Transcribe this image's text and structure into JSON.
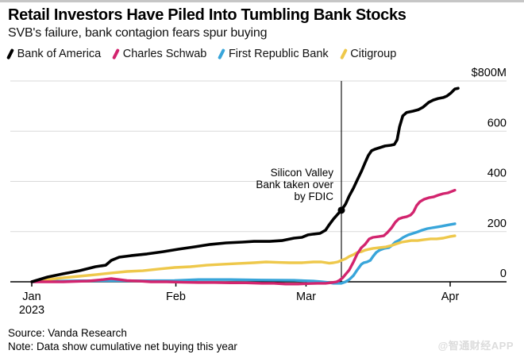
{
  "header": {
    "title": "Retail Investors Have Piled Into Tumbling Bank Stocks",
    "subtitle": "SVB's failure, bank contagion fears spur buying"
  },
  "legend": {
    "items": [
      {
        "label": "Bank of America",
        "color": "#000000"
      },
      {
        "label": "Charles Schwab",
        "color": "#d2246e"
      },
      {
        "label": "First Republic Bank",
        "color": "#38a5da"
      },
      {
        "label": "Citigroup",
        "color": "#eec84b"
      }
    ]
  },
  "chart_data": {
    "type": "line",
    "title": "Retail Investors Have Piled Into Tumbling Bank Stocks",
    "subtitle": "SVB's failure, bank contagion fears spur buying",
    "unit": "$M cumulative net buying",
    "x_axis": {
      "tick_labels": [
        "Jan",
        "Feb",
        "Mar",
        "Apr"
      ],
      "tick_days": [
        0,
        31,
        59,
        90
      ],
      "year_label": "2023",
      "domain_days": [
        0,
        91.7
      ]
    },
    "y_axis": {
      "ticks": [
        0,
        200,
        400,
        600,
        800
      ],
      "top_tick_label": "$800M",
      "ylim": [
        -15,
        800
      ],
      "grid": true,
      "label_side": "right"
    },
    "event_line": {
      "day": 66.6,
      "label_lines": [
        "Silicon Valley",
        "Bank taken over",
        "by FDIC"
      ],
      "marker": {
        "day": 66.6,
        "value": 285,
        "series": "Bank of America"
      }
    },
    "grid_color": "#d9d9d9",
    "series": [
      {
        "name": "Bank of America",
        "color": "#000000",
        "width": 3.6,
        "points": [
          [
            0,
            0
          ],
          [
            3.4,
            19
          ],
          [
            6.8,
            32
          ],
          [
            10.2,
            44
          ],
          [
            13.7,
            60
          ],
          [
            15.9,
            66
          ],
          [
            17.1,
            85
          ],
          [
            18.8,
            98
          ],
          [
            21.3,
            104
          ],
          [
            24.8,
            111
          ],
          [
            28.2,
            120
          ],
          [
            31.6,
            130
          ],
          [
            35,
            139
          ],
          [
            38.4,
            149
          ],
          [
            41.8,
            155
          ],
          [
            45.3,
            158
          ],
          [
            47.8,
            161
          ],
          [
            51.2,
            161
          ],
          [
            53.8,
            164
          ],
          [
            56.4,
            174
          ],
          [
            58.1,
            177
          ],
          [
            59.4,
            187
          ],
          [
            60.6,
            190
          ],
          [
            62,
            193
          ],
          [
            63.2,
            206
          ],
          [
            64,
            228
          ],
          [
            64.9,
            250
          ],
          [
            65.8,
            269
          ],
          [
            66.6,
            285
          ],
          [
            67.5,
            310
          ],
          [
            68.3,
            342
          ],
          [
            69.2,
            373
          ],
          [
            70,
            405
          ],
          [
            70.9,
            440
          ],
          [
            71.7,
            474
          ],
          [
            72.4,
            503
          ],
          [
            73.1,
            522
          ],
          [
            73.8,
            528
          ],
          [
            74.8,
            534
          ],
          [
            76,
            541
          ],
          [
            77.2,
            544
          ],
          [
            78,
            547
          ],
          [
            78.6,
            566
          ],
          [
            79.1,
            617
          ],
          [
            79.8,
            661
          ],
          [
            80.6,
            674
          ],
          [
            82,
            680
          ],
          [
            83.2,
            686
          ],
          [
            84.2,
            696
          ],
          [
            85.4,
            715
          ],
          [
            86.4,
            724
          ],
          [
            87.4,
            730
          ],
          [
            88.5,
            734
          ],
          [
            89.3,
            740
          ],
          [
            90.2,
            753
          ],
          [
            91,
            768
          ],
          [
            91.7,
            771
          ]
        ]
      },
      {
        "name": "Charles Schwab",
        "color": "#d2246e",
        "width": 3.4,
        "points": [
          [
            0,
            0
          ],
          [
            6.8,
            0
          ],
          [
            12,
            3
          ],
          [
            15.4,
            9
          ],
          [
            17.1,
            13
          ],
          [
            18.8,
            9
          ],
          [
            20.5,
            5
          ],
          [
            23.1,
            3
          ],
          [
            25.6,
            0
          ],
          [
            29,
            0
          ],
          [
            32.4,
            -2
          ],
          [
            35.9,
            -3
          ],
          [
            39.3,
            -3
          ],
          [
            42.7,
            -4
          ],
          [
            46.1,
            -4
          ],
          [
            49.5,
            -6
          ],
          [
            52.1,
            -6
          ],
          [
            54.6,
            -9
          ],
          [
            57.2,
            -9
          ],
          [
            59.8,
            -7
          ],
          [
            61.5,
            -6
          ],
          [
            63.2,
            -6
          ],
          [
            64.6,
            -3
          ],
          [
            65.6,
            0
          ],
          [
            66.2,
            6
          ],
          [
            66.9,
            16
          ],
          [
            67.6,
            32
          ],
          [
            68.3,
            47
          ],
          [
            69.2,
            79
          ],
          [
            70,
            111
          ],
          [
            70.9,
            136
          ],
          [
            71.7,
            149
          ],
          [
            72.6,
            171
          ],
          [
            73.4,
            177
          ],
          [
            74.6,
            180
          ],
          [
            75.7,
            183
          ],
          [
            76.5,
            196
          ],
          [
            77.4,
            215
          ],
          [
            78.2,
            237
          ],
          [
            78.9,
            250
          ],
          [
            79.8,
            256
          ],
          [
            80.6,
            259
          ],
          [
            81.5,
            266
          ],
          [
            82.1,
            278
          ],
          [
            82.8,
            304
          ],
          [
            83.5,
            319
          ],
          [
            84.4,
            329
          ],
          [
            85.4,
            335
          ],
          [
            86.4,
            338
          ],
          [
            87.4,
            345
          ],
          [
            88.5,
            351
          ],
          [
            89.5,
            354
          ],
          [
            90.3,
            360
          ],
          [
            91,
            365
          ]
        ]
      },
      {
        "name": "First Republic Bank",
        "color": "#38a5da",
        "width": 3.4,
        "points": [
          [
            0,
            0
          ],
          [
            3.4,
            2
          ],
          [
            10.2,
            4
          ],
          [
            17.1,
            4
          ],
          [
            23.9,
            4
          ],
          [
            30.7,
            5
          ],
          [
            35.9,
            9
          ],
          [
            42.7,
            9
          ],
          [
            49.5,
            7
          ],
          [
            56.4,
            6
          ],
          [
            60.6,
            3
          ],
          [
            62.3,
            0
          ],
          [
            64,
            -3
          ],
          [
            64.9,
            -6
          ],
          [
            65.8,
            -6
          ],
          [
            66.6,
            -6
          ],
          [
            67.5,
            0
          ],
          [
            68.3,
            9
          ],
          [
            69.2,
            25
          ],
          [
            70,
            47
          ],
          [
            70.9,
            70
          ],
          [
            71.4,
            76
          ],
          [
            72.1,
            79
          ],
          [
            72.8,
            85
          ],
          [
            73.4,
            101
          ],
          [
            74.1,
            117
          ],
          [
            74.8,
            126
          ],
          [
            75.8,
            133
          ],
          [
            76.8,
            136
          ],
          [
            77.5,
            145
          ],
          [
            78.2,
            158
          ],
          [
            78.9,
            164
          ],
          [
            79.9,
            177
          ],
          [
            81,
            187
          ],
          [
            82,
            193
          ],
          [
            83,
            199
          ],
          [
            84,
            206
          ],
          [
            85.1,
            212
          ],
          [
            86.1,
            215
          ],
          [
            87.1,
            218
          ],
          [
            88.1,
            221
          ],
          [
            89.2,
            225
          ],
          [
            90,
            228
          ],
          [
            91,
            231
          ]
        ]
      },
      {
        "name": "Citigroup",
        "color": "#eec84b",
        "width": 3.4,
        "points": [
          [
            0,
            0
          ],
          [
            3.4,
            9
          ],
          [
            6.8,
            16
          ],
          [
            10.2,
            22
          ],
          [
            13.7,
            28
          ],
          [
            17.1,
            35
          ],
          [
            20.5,
            41
          ],
          [
            23.9,
            44
          ],
          [
            27.3,
            51
          ],
          [
            30.7,
            57
          ],
          [
            34.1,
            60
          ],
          [
            37.6,
            66
          ],
          [
            41,
            70
          ],
          [
            44.4,
            73
          ],
          [
            47.8,
            76
          ],
          [
            50.4,
            79
          ],
          [
            53,
            77
          ],
          [
            55.5,
            76
          ],
          [
            58.1,
            76
          ],
          [
            60.6,
            79
          ],
          [
            62.3,
            79
          ],
          [
            64,
            74
          ],
          [
            64.9,
            76
          ],
          [
            65.8,
            79
          ],
          [
            66.6,
            85
          ],
          [
            67.5,
            92
          ],
          [
            68.3,
            101
          ],
          [
            69.2,
            108
          ],
          [
            70,
            117
          ],
          [
            70.9,
            120
          ],
          [
            71.7,
            126
          ],
          [
            72.6,
            130
          ],
          [
            73.4,
            133
          ],
          [
            74.8,
            136
          ],
          [
            76.2,
            139
          ],
          [
            77.5,
            145
          ],
          [
            78.6,
            152
          ],
          [
            79.6,
            158
          ],
          [
            80.6,
            161
          ],
          [
            81.6,
            164
          ],
          [
            83,
            164
          ],
          [
            84.4,
            168
          ],
          [
            85.8,
            171
          ],
          [
            87.1,
            171
          ],
          [
            88.5,
            174
          ],
          [
            89.9,
            180
          ],
          [
            91,
            183
          ]
        ]
      }
    ]
  },
  "footer": {
    "source": "Source: Vanda Research",
    "note": "Note: Data show cumulative net buying this year",
    "watermark": "@智通财经APP"
  }
}
